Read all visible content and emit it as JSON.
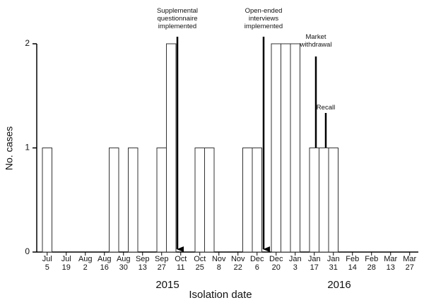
{
  "chart_data": {
    "type": "bar",
    "y_label": "No. cases",
    "x_label": "Isolation date",
    "year_labels": [
      "2015",
      "2016"
    ],
    "categories": [
      "Jul 5",
      null,
      "Jul 19",
      null,
      "Aug 2",
      null,
      "Aug 16",
      null,
      "Aug 30",
      null,
      "Sep 13",
      null,
      "Sep 27",
      null,
      "Oct 11",
      null,
      "Oct 25",
      null,
      "Nov 8",
      null,
      "Nov 22",
      null,
      "Dec 6",
      null,
      "Dec 20",
      null,
      "Jan 3",
      null,
      "Jan 17",
      null,
      "Jan 31",
      null,
      "Feb 14",
      null,
      "Feb 28",
      null,
      "Mar 13",
      null,
      "Mar 27"
    ],
    "values": [
      1,
      0,
      0,
      0,
      0,
      0,
      0,
      1,
      0,
      1,
      0,
      0,
      1,
      2,
      0,
      0,
      1,
      1,
      0,
      0,
      0,
      1,
      1,
      0,
      2,
      2,
      2,
      0,
      1,
      1,
      1,
      0,
      0,
      0,
      0,
      0,
      0,
      0,
      0
    ],
    "color": "#ffffff",
    "edge_color": "#333333",
    "ylim": [
      0,
      2
    ],
    "yticks": [
      0,
      1,
      2
    ],
    "grid": false,
    "annotations": [
      [
        "Supplemental",
        "questionnaire",
        "implemented"
      ],
      [
        "Open-ended",
        "interviews",
        "implemented"
      ],
      [
        "Market",
        "withdrawal"
      ],
      [
        "Recall"
      ]
    ]
  }
}
